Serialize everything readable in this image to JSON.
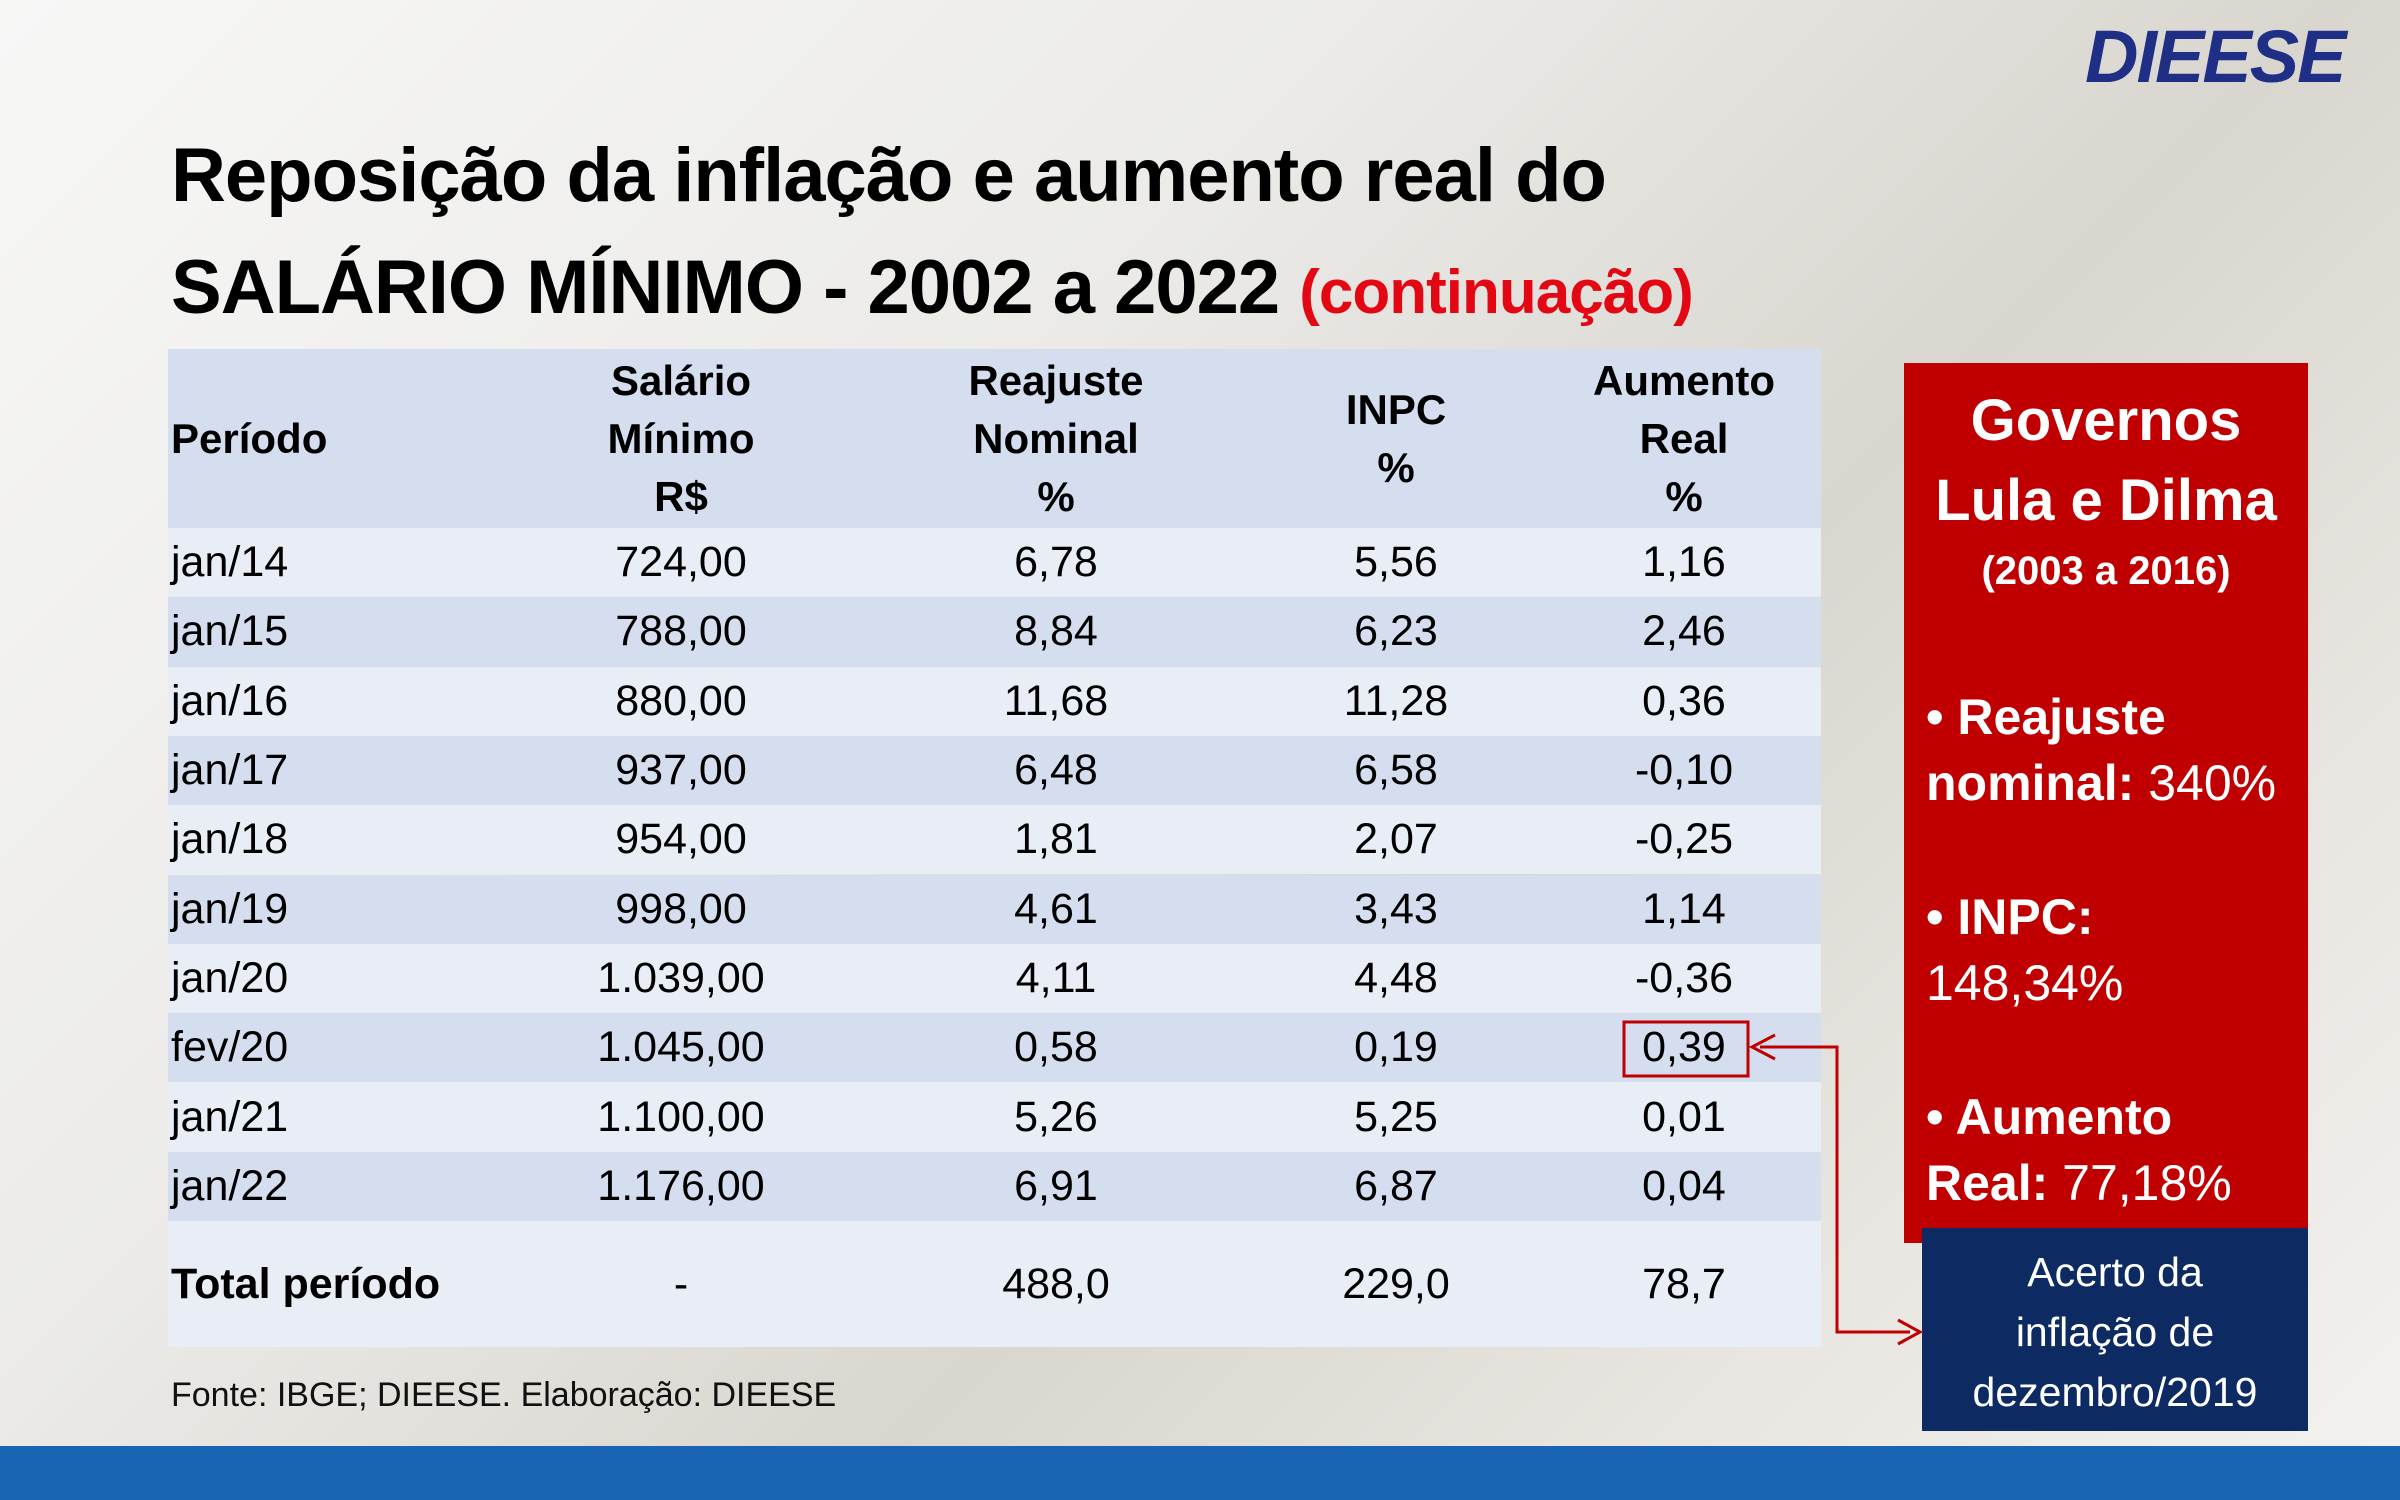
{
  "header": {
    "logo": "DIEESE",
    "title_line1": "Reposição da inflação e aumento real do",
    "title_line2": "SALÁRIO MÍNIMO - 2002 a 2022",
    "title_note": "(continuação)"
  },
  "table": {
    "columns": [
      [
        "Período"
      ],
      [
        "Salário",
        "Mínimo",
        "R$"
      ],
      [
        "Reajuste",
        "Nominal",
        "%"
      ],
      [
        "INPC",
        "%"
      ],
      [
        "Aumento",
        "Real",
        "%"
      ]
    ],
    "rows": [
      [
        "jan/14",
        "724,00",
        "6,78",
        "5,56",
        "1,16"
      ],
      [
        "jan/15",
        "788,00",
        "8,84",
        "6,23",
        "2,46"
      ],
      [
        "jan/16",
        "880,00",
        "11,68",
        "11,28",
        "0,36"
      ],
      [
        "jan/17",
        "937,00",
        "6,48",
        "6,58",
        "-0,10"
      ],
      [
        "jan/18",
        "954,00",
        "1,81",
        "2,07",
        "-0,25"
      ],
      [
        "jan/19",
        "998,00",
        "4,61",
        "3,43",
        "1,14"
      ],
      [
        "jan/20",
        "1.039,00",
        "4,11",
        "4,48",
        "-0,36"
      ],
      [
        "fev/20",
        "1.045,00",
        "0,58",
        "0,19",
        "0,39"
      ],
      [
        "jan/21",
        "1.100,00",
        "5,26",
        "5,25",
        "0,01"
      ],
      [
        "jan/22",
        "1.176,00",
        "6,91",
        "6,87",
        "0,04"
      ]
    ],
    "total": [
      "Total período",
      "-",
      "488,0",
      "229,0",
      "78,7"
    ]
  },
  "source": "Fonte: IBGE; DIEESE. Elaboração: DIEESE",
  "sidebar": {
    "title": [
      "Governos",
      "Lula e Dilma"
    ],
    "period": "(2003 a 2016)",
    "items": [
      {
        "label": "• Reajuste nominal:",
        "value": "340%"
      },
      {
        "label": "• INPC:",
        "value": "148,34%"
      },
      {
        "label": "• Aumento Real:",
        "value": "77,18%"
      }
    ]
  },
  "note": [
    "Acerto da",
    "inflação de",
    "dezembro/2019"
  ]
}
